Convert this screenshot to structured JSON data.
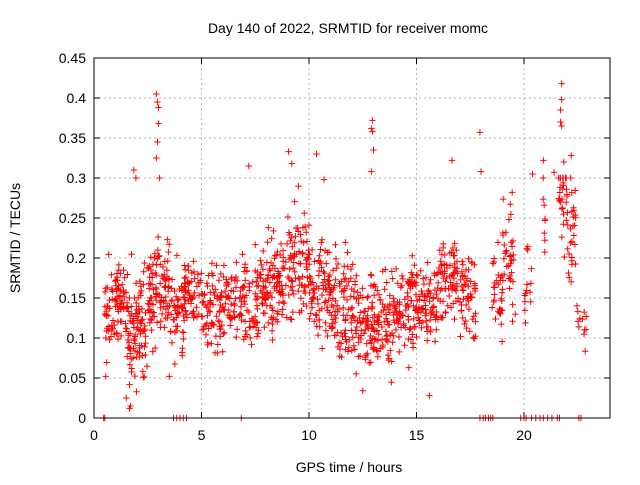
{
  "chart_data": {
    "type": "scatter",
    "title": "Day 140 of 2022, SRMTID for receiver momc",
    "xlabel": "GPS time / hours",
    "ylabel": "SRMTID / TECUs",
    "xlim": [
      0,
      24
    ],
    "ylim": [
      0,
      0.45
    ],
    "x_ticks": [
      0,
      5,
      10,
      15,
      20
    ],
    "y_ticks": [
      0,
      0.05,
      0.1,
      0.15,
      0.2,
      0.25,
      0.3,
      0.35,
      0.4,
      0.45
    ],
    "x_tick_labels": [
      "0",
      "5",
      "10",
      "15",
      "20"
    ],
    "y_tick_labels": [
      "0",
      "0.05",
      "0.1",
      "0.15",
      "0.2",
      "0.25",
      "0.3",
      "0.35",
      "0.4",
      "0.45"
    ],
    "grid": true,
    "marker": "+",
    "color": "#ff0000",
    "density": [
      {
        "start": 0.5,
        "end": 1.0,
        "mean": 0.13,
        "spread": 0.04,
        "count": 35
      },
      {
        "start": 1.0,
        "end": 1.5,
        "mean": 0.15,
        "spread": 0.035,
        "count": 50
      },
      {
        "start": 1.5,
        "end": 2.0,
        "mean": 0.11,
        "spread": 0.05,
        "count": 50
      },
      {
        "start": 2.0,
        "end": 2.5,
        "mean": 0.12,
        "spread": 0.05,
        "count": 45
      },
      {
        "start": 2.5,
        "end": 3.0,
        "mean": 0.16,
        "spread": 0.05,
        "count": 50
      },
      {
        "start": 3.0,
        "end": 3.5,
        "mean": 0.16,
        "spread": 0.04,
        "count": 45
      },
      {
        "start": 3.5,
        "end": 4.2,
        "mean": 0.13,
        "spread": 0.04,
        "count": 50
      },
      {
        "start": 4.2,
        "end": 5.0,
        "mean": 0.16,
        "spread": 0.035,
        "count": 55
      },
      {
        "start": 5.0,
        "end": 6.0,
        "mean": 0.14,
        "spread": 0.04,
        "count": 75
      },
      {
        "start": 6.0,
        "end": 7.0,
        "mean": 0.15,
        "spread": 0.035,
        "count": 65
      },
      {
        "start": 7.0,
        "end": 8.0,
        "mean": 0.15,
        "spread": 0.04,
        "count": 75
      },
      {
        "start": 8.0,
        "end": 9.0,
        "mean": 0.17,
        "spread": 0.045,
        "count": 80
      },
      {
        "start": 9.0,
        "end": 10.0,
        "mean": 0.19,
        "spread": 0.05,
        "count": 80
      },
      {
        "start": 10.0,
        "end": 11.0,
        "mean": 0.16,
        "spread": 0.045,
        "count": 80
      },
      {
        "start": 11.0,
        "end": 12.0,
        "mean": 0.14,
        "spread": 0.045,
        "count": 80
      },
      {
        "start": 12.0,
        "end": 13.0,
        "mean": 0.12,
        "spread": 0.045,
        "count": 80
      },
      {
        "start": 13.0,
        "end": 14.0,
        "mean": 0.12,
        "spread": 0.04,
        "count": 80
      },
      {
        "start": 14.0,
        "end": 15.0,
        "mean": 0.14,
        "spread": 0.04,
        "count": 80
      },
      {
        "start": 15.0,
        "end": 16.0,
        "mean": 0.14,
        "spread": 0.035,
        "count": 75
      },
      {
        "start": 16.0,
        "end": 17.0,
        "mean": 0.17,
        "spread": 0.04,
        "count": 70
      },
      {
        "start": 17.0,
        "end": 17.8,
        "mean": 0.15,
        "spread": 0.045,
        "count": 55
      },
      {
        "start": 18.5,
        "end": 19.0,
        "mean": 0.16,
        "spread": 0.04,
        "count": 30
      },
      {
        "start": 19.0,
        "end": 19.6,
        "mean": 0.2,
        "spread": 0.05,
        "count": 35
      },
      {
        "start": 20.0,
        "end": 20.4,
        "mean": 0.17,
        "spread": 0.04,
        "count": 14
      },
      {
        "start": 20.8,
        "end": 21.0,
        "mean": 0.26,
        "spread": 0.03,
        "count": 8
      },
      {
        "start": 21.6,
        "end": 22.0,
        "mean": 0.28,
        "spread": 0.05,
        "count": 28
      },
      {
        "start": 22.0,
        "end": 22.4,
        "mean": 0.24,
        "spread": 0.045,
        "count": 28
      },
      {
        "start": 22.4,
        "end": 22.9,
        "mean": 0.12,
        "spread": 0.02,
        "count": 12
      }
    ],
    "peaks": [
      {
        "x": 2.9,
        "y": 0.405
      },
      {
        "x": 2.95,
        "y": 0.395
      },
      {
        "x": 3.0,
        "y": 0.388
      },
      {
        "x": 3.0,
        "y": 0.368
      },
      {
        "x": 2.95,
        "y": 0.345
      },
      {
        "x": 2.9,
        "y": 0.325
      },
      {
        "x": 1.85,
        "y": 0.31
      },
      {
        "x": 1.95,
        "y": 0.3
      },
      {
        "x": 3.05,
        "y": 0.3
      },
      {
        "x": 7.2,
        "y": 0.315
      },
      {
        "x": 9.05,
        "y": 0.333
      },
      {
        "x": 9.2,
        "y": 0.318
      },
      {
        "x": 10.35,
        "y": 0.33
      },
      {
        "x": 10.7,
        "y": 0.298
      },
      {
        "x": 12.95,
        "y": 0.372
      },
      {
        "x": 12.9,
        "y": 0.362
      },
      {
        "x": 12.95,
        "y": 0.358
      },
      {
        "x": 13.0,
        "y": 0.335
      },
      {
        "x": 12.9,
        "y": 0.308
      },
      {
        "x": 16.65,
        "y": 0.322
      },
      {
        "x": 17.95,
        "y": 0.357
      },
      {
        "x": 18.0,
        "y": 0.308
      },
      {
        "x": 19.45,
        "y": 0.282
      },
      {
        "x": 20.4,
        "y": 0.305
      },
      {
        "x": 20.9,
        "y": 0.322
      },
      {
        "x": 21.4,
        "y": 0.307
      },
      {
        "x": 21.75,
        "y": 0.418
      },
      {
        "x": 21.75,
        "y": 0.398
      },
      {
        "x": 21.7,
        "y": 0.385
      },
      {
        "x": 21.7,
        "y": 0.37
      },
      {
        "x": 21.75,
        "y": 0.365
      },
      {
        "x": 22.2,
        "y": 0.328
      },
      {
        "x": 21.85,
        "y": 0.32
      },
      {
        "x": 1.7,
        "y": 0.015
      },
      {
        "x": 1.65,
        "y": 0.012
      },
      {
        "x": 1.5,
        "y": 0.025
      },
      {
        "x": 15.6,
        "y": 0.028
      },
      {
        "x": 12.5,
        "y": 0.034
      },
      {
        "x": 3.5,
        "y": 0.052
      },
      {
        "x": 0.55,
        "y": 0.052
      }
    ],
    "zeros_x": [
      0.45,
      0.5,
      3.7,
      3.85,
      4.0,
      4.15,
      4.3,
      6.85,
      17.95,
      18.1,
      18.2,
      18.35,
      18.45,
      18.55,
      19.85,
      20.0,
      20.1,
      20.35,
      20.55,
      20.75,
      20.9,
      21.1,
      21.3,
      21.55,
      21.65,
      22.55,
      22.65
    ]
  }
}
